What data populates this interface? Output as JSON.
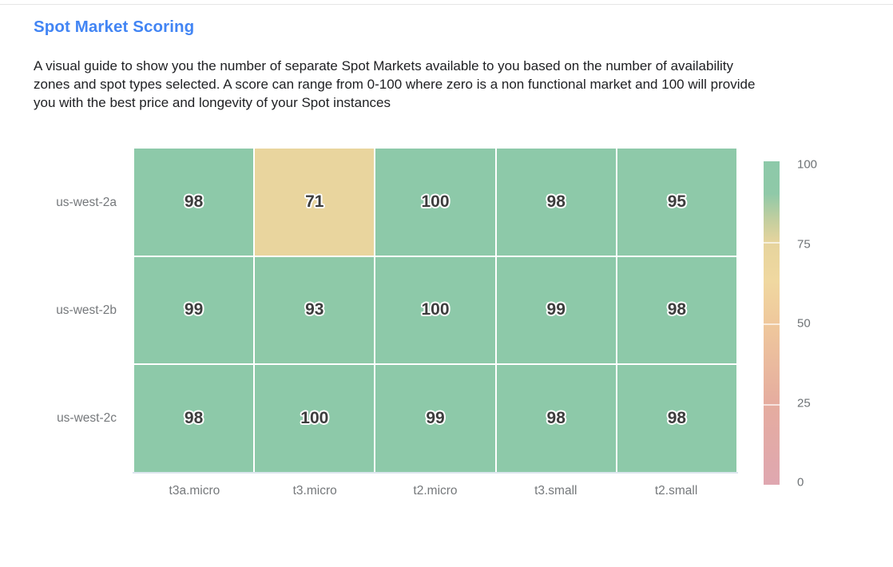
{
  "header": {
    "title": "Spot Market Scoring",
    "description": "A visual guide to show you the number of separate Spot Markets available to you based on the number of availability\nzones and spot types selected. A score can range from 0-100 where zero is a non functional market and 100 will provide\nyou with the best price and longevity of your Spot instances"
  },
  "colors": {
    "title_blue": "#4285F4",
    "cell_green": "#8dc9a9",
    "cell_tan": "#edd29e",
    "axis_label_gray": "#75787b",
    "cell_text": "#3d3d3d",
    "divider_gray": "#e5e5e5"
  },
  "chart_data": {
    "type": "heatmap",
    "title": "Spot Market Scoring",
    "rows": [
      "us-west-2a",
      "us-west-2b",
      "us-west-2c"
    ],
    "columns": [
      "t3a.micro",
      "t3.micro",
      "t2.micro",
      "t3.small",
      "t2.small"
    ],
    "values": [
      [
        98,
        71,
        100,
        98,
        95
      ],
      [
        99,
        93,
        100,
        99,
        98
      ],
      [
        98,
        100,
        99,
        98,
        98
      ]
    ],
    "value_range": [
      0,
      100
    ],
    "grid": "white gaps between cells",
    "legend_position": "right vertical colorbar",
    "colorbar_ticks": [
      100,
      75,
      50,
      25,
      0
    ],
    "color_scale": {
      "stops": [
        [
          0,
          "#dfa7b0"
        ],
        [
          25,
          "#e5ac9f"
        ],
        [
          50,
          "#efc89c"
        ],
        [
          63,
          "#f0d8a0"
        ],
        [
          75,
          "#e6d49d"
        ],
        [
          82,
          "#c2ce9f"
        ],
        [
          90,
          "#8fc9a8"
        ],
        [
          100,
          "#8dc9a9"
        ]
      ]
    }
  }
}
